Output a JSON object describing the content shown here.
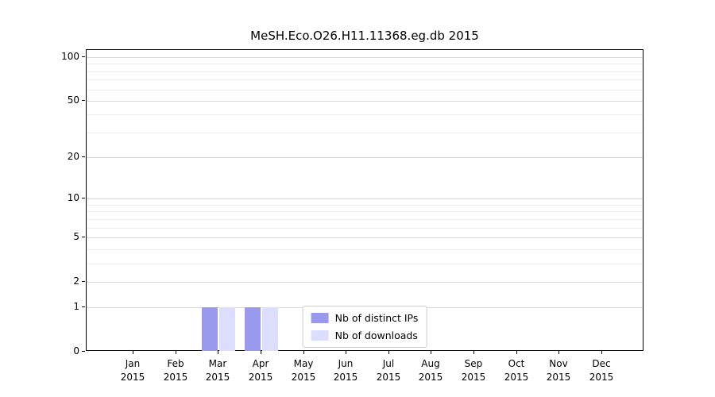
{
  "title": "MeSH.Eco.O26.H11.11368.eg.db 2015",
  "chart_data": {
    "type": "bar",
    "title": "MeSH.Eco.O26.H11.11368.eg.db 2015",
    "categories": [
      "Jan",
      "Feb",
      "Mar",
      "Apr",
      "May",
      "Jun",
      "Jul",
      "Aug",
      "Sep",
      "Oct",
      "Nov",
      "Dec"
    ],
    "year_label": "2015",
    "series": [
      {
        "name": "Nb of distinct IPs",
        "color": "#9999ee",
        "values": [
          0,
          0,
          1,
          1,
          0,
          0,
          0,
          0,
          0,
          0,
          0,
          0
        ]
      },
      {
        "name": "Nb of downloads",
        "color": "#ddddff",
        "values": [
          0,
          0,
          1,
          1,
          0,
          0,
          0,
          0,
          0,
          0,
          0,
          0
        ]
      }
    ],
    "yscale": "log1p",
    "ylim": [
      0,
      112
    ],
    "ytick_values": [
      0,
      1,
      2,
      5,
      10,
      20,
      50,
      100
    ],
    "ytick_labels": [
      "0",
      "1",
      "2",
      "5",
      "10",
      "20",
      "50",
      "100"
    ],
    "minor_grid_values": [
      1,
      2,
      3,
      4,
      5,
      6,
      7,
      8,
      9,
      10,
      20,
      30,
      40,
      50,
      60,
      70,
      80,
      90,
      100
    ],
    "grid": true,
    "legend_position": "bottom-center"
  },
  "colors": {
    "grid_major": "#d8d8d8",
    "grid_minor": "#ececec",
    "axis": "#000000",
    "legend_border": "#cccccc",
    "background": "#ffffff"
  }
}
